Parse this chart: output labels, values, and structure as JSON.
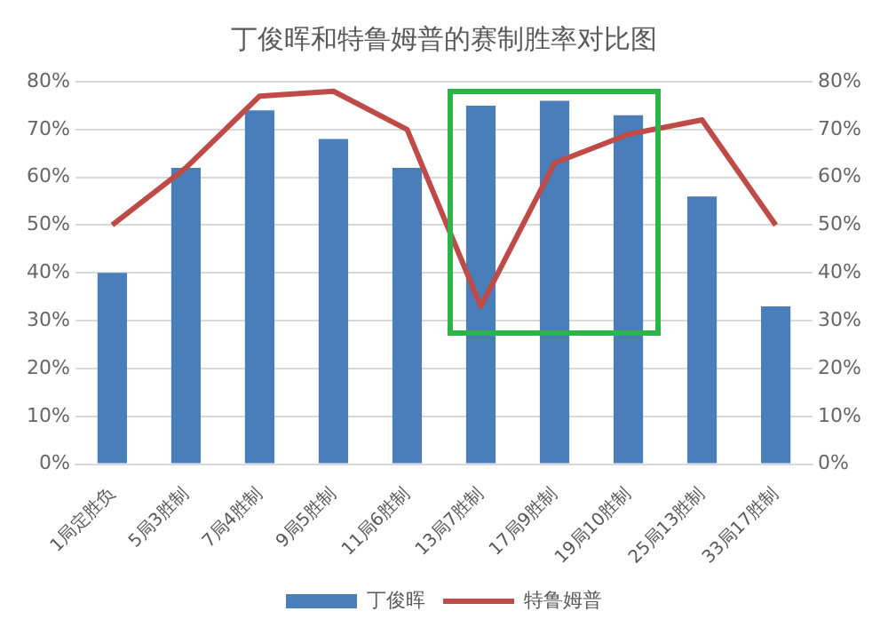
{
  "chart_data": {
    "type": "bar",
    "title": "丁俊晖和特鲁姆普的赛制胜率对比图",
    "categories": [
      "1局定胜负",
      "5局3胜制",
      "7局4胜制",
      "9局5胜制",
      "11局6胜制",
      "13局7胜制",
      "17局9胜制",
      "19局10胜制",
      "25局13胜制",
      "33局17胜制"
    ],
    "series": [
      {
        "name": "丁俊晖",
        "color": "#4a7ebb",
        "values": [
          40,
          62,
          74,
          68,
          62,
          75,
          76,
          73,
          56,
          33
        ]
      },
      {
        "name": "特鲁姆普",
        "type": "line",
        "color": "#be4b48",
        "values": [
          50,
          62,
          77,
          78,
          70,
          33,
          63,
          69,
          72,
          50
        ]
      }
    ],
    "ylim": [
      0,
      80
    ],
    "yticks": [
      {
        "value": 0,
        "label": "0%"
      },
      {
        "value": 10,
        "label": "10%"
      },
      {
        "value": 20,
        "label": "20%"
      },
      {
        "value": 30,
        "label": "30%"
      },
      {
        "value": 40,
        "label": "40%"
      },
      {
        "value": 50,
        "label": "50%"
      },
      {
        "value": 60,
        "label": "60%"
      },
      {
        "value": 70,
        "label": "70%"
      },
      {
        "value": 80,
        "label": "80%"
      }
    ],
    "y2lim": [
      0,
      80
    ],
    "y2ticks": [
      {
        "value": 0,
        "label": "0%"
      },
      {
        "value": 10,
        "label": "10%"
      },
      {
        "value": 20,
        "label": "20%"
      },
      {
        "value": 30,
        "label": "30%"
      },
      {
        "value": 40,
        "label": "40%"
      },
      {
        "value": 50,
        "label": "50%"
      },
      {
        "value": 60,
        "label": "60%"
      },
      {
        "value": 70,
        "label": "70%"
      },
      {
        "value": 80,
        "label": "80%"
      }
    ],
    "grid": "y",
    "legend": "bottom",
    "marker": "none",
    "line_style": "solid"
  }
}
